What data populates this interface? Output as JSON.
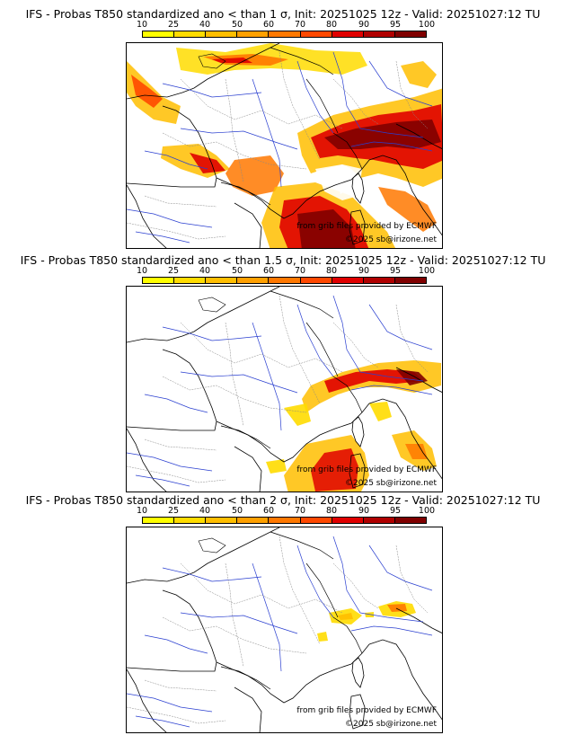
{
  "colorbar": {
    "ticks": [
      "10",
      "25",
      "40",
      "50",
      "60",
      "70",
      "80",
      "90",
      "95",
      "100"
    ],
    "colors": [
      "#ffff00",
      "#ffdc00",
      "#ffbe00",
      "#ffa000",
      "#ff7800",
      "#ff4800",
      "#e00000",
      "#b00000",
      "#800000"
    ]
  },
  "panels": [
    {
      "title": "IFS - Probas T850  standardized ano < than 1 σ, Init: 20251025 12z - Valid: 20251027:12 TU"
    },
    {
      "title": "IFS - Probas T850  standardized ano < than 1.5 σ, Init: 20251025 12z - Valid: 20251027:12 TU"
    },
    {
      "title": "IFS - Probas T850  standardized ano < than 2 σ, Init: 20251025 12z - Valid: 20251027:12 TU"
    }
  ],
  "credits": {
    "source": "from grib files provided by ECMWF",
    "copyright": "©2025 sb@irizone.net"
  }
}
